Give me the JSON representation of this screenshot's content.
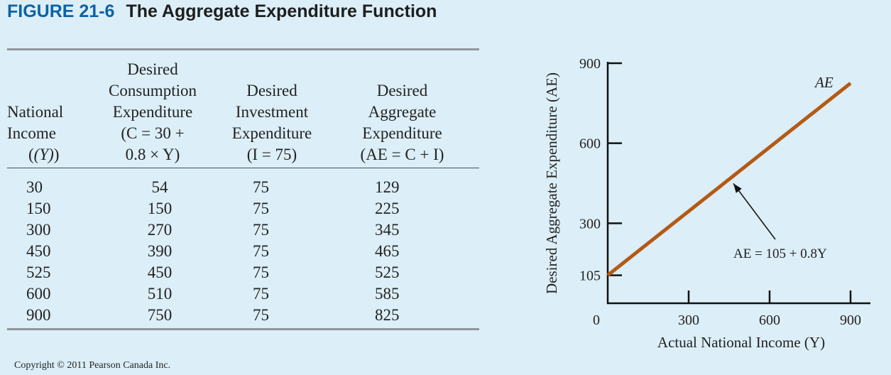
{
  "figure": {
    "number": "FIGURE 21-6",
    "title": "The Aggregate Expenditure Function"
  },
  "table": {
    "headers": [
      [
        "National",
        "Income",
        "(Y)"
      ],
      [
        "Desired",
        "Consumption",
        "Expenditure",
        "(C = 30 +",
        "0.8 × Y)"
      ],
      [
        "Desired",
        "Investment",
        "Expenditure",
        "(I = 75)"
      ],
      [
        "Desired",
        "Aggregate",
        "Expenditure",
        "(AE = C + I)"
      ]
    ],
    "rows": [
      [
        "30",
        "54",
        "75",
        "129"
      ],
      [
        "150",
        "150",
        "75",
        "225"
      ],
      [
        "300",
        "270",
        "75",
        "345"
      ],
      [
        "450",
        "390",
        "75",
        "465"
      ],
      [
        "525",
        "450",
        "75",
        "525"
      ],
      [
        "600",
        "510",
        "75",
        "585"
      ],
      [
        "900",
        "750",
        "75",
        "825"
      ]
    ]
  },
  "copyright": "Copyright © 2011 Pearson Canada Inc.",
  "chart_data": {
    "type": "line",
    "xlabel": "Actual National Income (Y)",
    "ylabel": "Desired Aggregate Expenditure (AE)",
    "xlim": [
      0,
      900
    ],
    "ylim": [
      0,
      900
    ],
    "x_ticks": [
      0,
      300,
      600,
      900
    ],
    "y_ticks": [
      105,
      300,
      600,
      900
    ],
    "grid": false,
    "series": [
      {
        "name": "AE",
        "color": "#b35a16",
        "x": [
          0,
          900
        ],
        "y": [
          105,
          825
        ]
      }
    ],
    "annotations": [
      {
        "text": "AE = 105 + 0.8Y",
        "points_to_x": 450,
        "points_to_y": 465
      }
    ]
  }
}
